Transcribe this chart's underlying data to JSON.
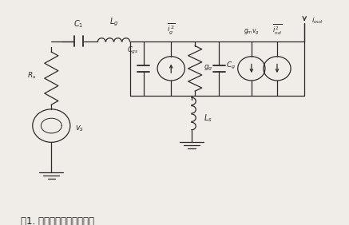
{
  "fig_width": 4.37,
  "fig_height": 2.82,
  "dpi": 100,
  "background": "#f0ede8",
  "line_color": "#2a2a2a",
  "line_width": 0.9,
  "title": "图1. 共源极小信号等效电路",
  "title_fontsize": 8.5
}
